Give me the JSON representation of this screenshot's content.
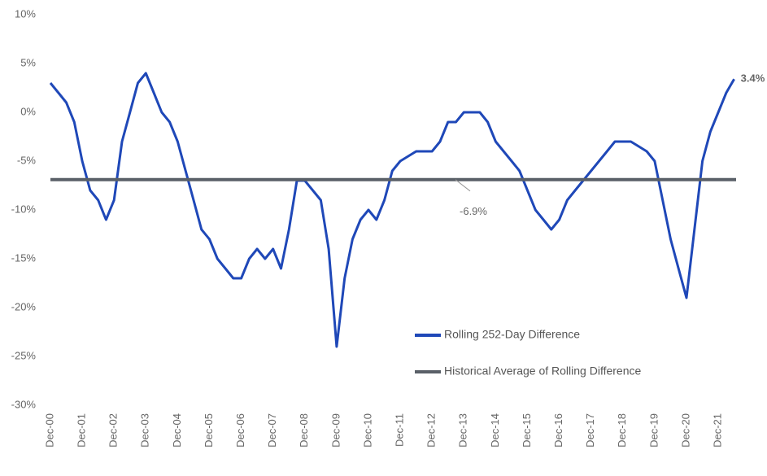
{
  "chart_data": {
    "type": "line",
    "x": [
      "Dec-00",
      "Mar-01",
      "Jun-01",
      "Sep-01",
      "Dec-01",
      "Mar-02",
      "Jun-02",
      "Sep-02",
      "Dec-02",
      "Mar-03",
      "Jun-03",
      "Sep-03",
      "Dec-03",
      "Mar-04",
      "Jun-04",
      "Sep-04",
      "Dec-04",
      "Mar-05",
      "Jun-05",
      "Sep-05",
      "Dec-05",
      "Mar-06",
      "Jun-06",
      "Sep-06",
      "Dec-06",
      "Mar-07",
      "Jun-07",
      "Sep-07",
      "Dec-07",
      "Mar-08",
      "Jun-08",
      "Sep-08",
      "Dec-08",
      "Mar-09",
      "Jun-09",
      "Sep-09",
      "Dec-09",
      "Mar-10",
      "Jun-10",
      "Sep-10",
      "Dec-10",
      "Mar-11",
      "Jun-11",
      "Sep-11",
      "Dec-11",
      "Mar-12",
      "Jun-12",
      "Sep-12",
      "Dec-12",
      "Mar-13",
      "Jun-13",
      "Sep-13",
      "Dec-13",
      "Mar-14",
      "Jun-14",
      "Sep-14",
      "Dec-14",
      "Mar-15",
      "Jun-15",
      "Sep-15",
      "Dec-15",
      "Mar-16",
      "Jun-16",
      "Sep-16",
      "Dec-16",
      "Mar-17",
      "Jun-17",
      "Sep-17",
      "Dec-17",
      "Mar-18",
      "Jun-18",
      "Sep-18",
      "Dec-18",
      "Mar-19",
      "Jun-19",
      "Sep-19",
      "Dec-19",
      "Mar-20",
      "Jun-20",
      "Sep-20",
      "Dec-20",
      "Mar-21",
      "Jun-21",
      "Sep-21",
      "Dec-21",
      "Mar-22",
      "Jun-22"
    ],
    "series": [
      {
        "name": "Rolling 252-Day Difference",
        "color": "#1f48b8",
        "values": [
          3,
          2,
          1,
          -1,
          -5,
          -8,
          -9,
          -11,
          -9,
          -3,
          0,
          3,
          4,
          2,
          0,
          -1,
          -3,
          -6,
          -9,
          -12,
          -13,
          -15,
          -16,
          -17,
          -17,
          -15,
          -14,
          -15,
          -14,
          -16,
          -12,
          -7,
          -7,
          -8,
          -9,
          -14,
          -24,
          -17,
          -13,
          -11,
          -10,
          -11,
          -9,
          -6,
          -5,
          -4.5,
          -4,
          -4,
          -4,
          -3,
          -1,
          -1,
          0,
          0,
          0,
          -1,
          -3,
          -4,
          -5,
          -6,
          -8,
          -10,
          -11,
          -12,
          -11,
          -9,
          -8,
          -7,
          -6,
          -5,
          -4,
          -3,
          -3,
          -3,
          -3.5,
          -4,
          -5,
          -9,
          -13,
          -16,
          -19,
          -12,
          -5,
          -2,
          0,
          2,
          3.4
        ],
        "end_label": "3.4%"
      },
      {
        "name": "Historical Average of Rolling Difference",
        "color": "#5a6068",
        "value": -6.9,
        "value_label": "-6.9%"
      }
    ],
    "ylim": [
      -30,
      10
    ],
    "yticks": [
      {
        "value": -30,
        "label": "-30%"
      },
      {
        "value": -25,
        "label": "-25%"
      },
      {
        "value": -20,
        "label": "-20%"
      },
      {
        "value": -15,
        "label": "-15%"
      },
      {
        "value": -10,
        "label": "-10%"
      },
      {
        "value": -5,
        "label": "-5%"
      },
      {
        "value": 0,
        "label": "0%"
      },
      {
        "value": 5,
        "label": "5%"
      },
      {
        "value": 10,
        "label": "10%"
      }
    ],
    "xticks": [
      "Dec-00",
      "Dec-01",
      "Dec-02",
      "Dec-03",
      "Dec-04",
      "Dec-05",
      "Dec-06",
      "Dec-07",
      "Dec-08",
      "Dec-09",
      "Dec-10",
      "Dec-11",
      "Dec-12",
      "Dec-13",
      "Dec-14",
      "Dec-15",
      "Dec-16",
      "Dec-17",
      "Dec-18",
      "Dec-19",
      "Dec-20",
      "Dec-21"
    ],
    "grid": false,
    "legend": "lower right"
  }
}
